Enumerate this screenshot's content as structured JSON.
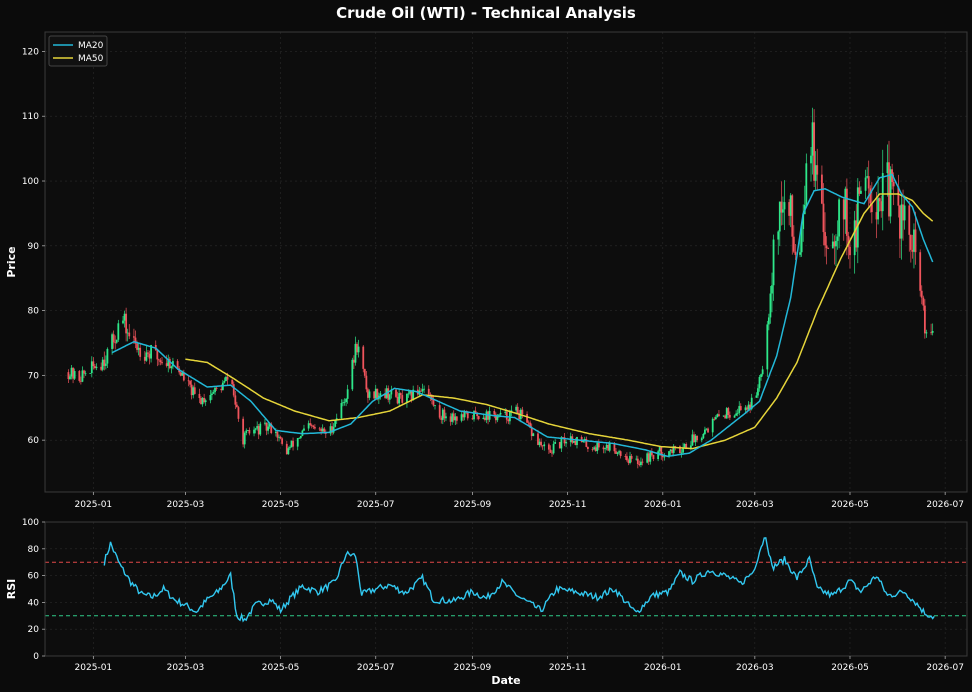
{
  "figure_title": "Crude Oil (WTI) - Technical Analysis",
  "colors": {
    "background": "#0b0b0b",
    "axes_face": "#0d0d0d",
    "grid": "#2a2a2a",
    "text": "#ffffff",
    "up_candle": "#2ee88a",
    "down_candle": "#f0545c",
    "ma20": "#22b8d8",
    "ma50": "#e6d53a",
    "rsi": "#32c8f0",
    "overbought": "#e04848",
    "oversold": "#2ecc8a"
  },
  "chart_data": [
    {
      "type": "candlestick",
      "title": "",
      "xlabel": "",
      "ylabel": "Price",
      "ylim": [
        52,
        123
      ],
      "yticks": [
        60,
        70,
        80,
        90,
        100,
        110,
        120
      ],
      "x_range": [
        "2024-12-01",
        "2026-07-15"
      ],
      "xtick_labels": [
        "2025-01",
        "2025-03",
        "2025-05",
        "2025-07",
        "2025-09",
        "2025-11",
        "2026-01",
        "2026-03",
        "2026-05",
        "2026-07"
      ],
      "xtick_dates": [
        "2025-01-01",
        "2025-03-01",
        "2025-05-01",
        "2025-07-01",
        "2025-09-01",
        "2025-11-01",
        "2026-01-01",
        "2026-03-01",
        "2026-05-01",
        "2026-07-01"
      ],
      "grid": true,
      "legend": {
        "position": "top-left",
        "entries": [
          "MA20",
          "MA50"
        ]
      },
      "close_keypoints": [
        [
          "2024-12-16",
          70.5
        ],
        [
          "2024-12-22",
          69.5
        ],
        [
          "2025-01-05",
          72.0
        ],
        [
          "2025-01-12",
          74.0
        ],
        [
          "2025-01-19",
          79.0
        ],
        [
          "2025-01-26",
          75.0
        ],
        [
          "2025-02-09",
          73.0
        ],
        [
          "2025-02-23",
          71.5
        ],
        [
          "2025-03-09",
          66.0
        ],
        [
          "2025-03-23",
          68.0
        ],
        [
          "2025-03-30",
          70.0
        ],
        [
          "2025-04-06",
          60.0
        ],
        [
          "2025-04-13",
          61.5
        ],
        [
          "2025-04-27",
          62.0
        ],
        [
          "2025-05-04",
          58.0
        ],
        [
          "2025-05-18",
          62.0
        ],
        [
          "2025-06-01",
          61.0
        ],
        [
          "2025-06-12",
          67.0
        ],
        [
          "2025-06-19",
          75.0
        ],
        [
          "2025-06-26",
          67.0
        ],
        [
          "2025-07-06",
          67.5
        ],
        [
          "2025-07-20",
          66.0
        ],
        [
          "2025-08-01",
          68.5
        ],
        [
          "2025-08-10",
          64.0
        ],
        [
          "2025-08-24",
          63.5
        ],
        [
          "2025-09-07",
          64.0
        ],
        [
          "2025-09-21",
          63.5
        ],
        [
          "2025-09-30",
          64.5
        ],
        [
          "2025-10-12",
          60.0
        ],
        [
          "2025-10-19",
          58.0
        ],
        [
          "2025-11-02",
          60.5
        ],
        [
          "2025-11-16",
          59.0
        ],
        [
          "2025-11-30",
          59.0
        ],
        [
          "2025-12-14",
          56.5
        ],
        [
          "2025-12-28",
          58.0
        ],
        [
          "2026-01-11",
          58.5
        ],
        [
          "2026-01-25",
          61.0
        ],
        [
          "2026-02-08",
          64.0
        ],
        [
          "2026-02-22",
          65.0
        ],
        [
          "2026-03-01",
          66.0
        ],
        [
          "2026-03-08",
          75.0
        ],
        [
          "2026-03-15",
          95.0
        ],
        [
          "2026-03-22",
          96.0
        ],
        [
          "2026-03-29",
          88.0
        ],
        [
          "2026-04-05",
          110.0
        ],
        [
          "2026-04-12",
          93.0
        ],
        [
          "2026-04-19",
          91.0
        ],
        [
          "2026-04-26",
          98.0
        ],
        [
          "2026-05-03",
          88.0
        ],
        [
          "2026-05-10",
          104.0
        ],
        [
          "2026-05-17",
          97.0
        ],
        [
          "2026-05-24",
          99.0
        ],
        [
          "2026-05-31",
          96.0
        ],
        [
          "2026-06-07",
          92.0
        ],
        [
          "2026-06-14",
          86.0
        ],
        [
          "2026-06-19",
          75.0
        ],
        [
          "2026-06-23",
          77.0
        ]
      ],
      "ma20_keypoints": [
        [
          "2025-01-13",
          73.5
        ],
        [
          "2025-01-27",
          75.2
        ],
        [
          "2025-02-10",
          74.2
        ],
        [
          "2025-02-24",
          71.0
        ],
        [
          "2025-03-15",
          68.2
        ],
        [
          "2025-03-30",
          68.5
        ],
        [
          "2025-04-12",
          66.0
        ],
        [
          "2025-04-28",
          61.5
        ],
        [
          "2025-05-15",
          61.0
        ],
        [
          "2025-06-01",
          61.2
        ],
        [
          "2025-06-15",
          62.5
        ],
        [
          "2025-06-29",
          66.0
        ],
        [
          "2025-07-13",
          68.0
        ],
        [
          "2025-07-27",
          67.5
        ],
        [
          "2025-08-10",
          66.0
        ],
        [
          "2025-08-24",
          64.5
        ],
        [
          "2025-09-14",
          63.8
        ],
        [
          "2025-09-28",
          63.5
        ],
        [
          "2025-10-19",
          60.5
        ],
        [
          "2025-11-09",
          60.0
        ],
        [
          "2025-11-30",
          59.5
        ],
        [
          "2025-12-21",
          58.5
        ],
        [
          "2026-01-04",
          57.5
        ],
        [
          "2026-01-18",
          58.0
        ],
        [
          "2026-02-01",
          60.0
        ],
        [
          "2026-02-22",
          64.0
        ],
        [
          "2026-03-04",
          66.0
        ],
        [
          "2026-03-15",
          73.0
        ],
        [
          "2026-03-24",
          82.0
        ],
        [
          "2026-04-01",
          95.0
        ],
        [
          "2026-04-08",
          98.5
        ],
        [
          "2026-04-15",
          98.8
        ],
        [
          "2026-04-26",
          97.5
        ],
        [
          "2026-05-10",
          96.5
        ],
        [
          "2026-05-20",
          100.5
        ],
        [
          "2026-05-28",
          101.0
        ],
        [
          "2026-06-03",
          98.0
        ],
        [
          "2026-06-10",
          96.0
        ],
        [
          "2026-06-17",
          91.0
        ],
        [
          "2026-06-23",
          87.5
        ]
      ],
      "ma50_keypoints": [
        [
          "2025-03-01",
          72.5
        ],
        [
          "2025-03-15",
          72.0
        ],
        [
          "2025-04-01",
          69.5
        ],
        [
          "2025-04-20",
          66.5
        ],
        [
          "2025-05-10",
          64.5
        ],
        [
          "2025-06-01",
          63.0
        ],
        [
          "2025-06-20",
          63.5
        ],
        [
          "2025-07-10",
          64.5
        ],
        [
          "2025-07-31",
          67.0
        ],
        [
          "2025-08-20",
          66.5
        ],
        [
          "2025-09-10",
          65.5
        ],
        [
          "2025-10-01",
          64.0
        ],
        [
          "2025-10-20",
          62.5
        ],
        [
          "2025-11-15",
          61.0
        ],
        [
          "2025-12-10",
          60.0
        ],
        [
          "2025-12-31",
          59.0
        ],
        [
          "2026-01-20",
          58.7
        ],
        [
          "2026-02-10",
          60.0
        ],
        [
          "2026-03-01",
          62.0
        ],
        [
          "2026-03-15",
          66.5
        ],
        [
          "2026-03-28",
          72.0
        ],
        [
          "2026-04-10",
          80.0
        ],
        [
          "2026-04-25",
          88.0
        ],
        [
          "2026-05-10",
          95.0
        ],
        [
          "2026-05-20",
          98.0
        ],
        [
          "2026-06-01",
          98.0
        ],
        [
          "2026-06-10",
          97.0
        ],
        [
          "2026-06-17",
          95.0
        ],
        [
          "2026-06-23",
          93.8
        ]
      ]
    },
    {
      "type": "line",
      "title": "",
      "xlabel": "Date",
      "ylabel": "RSI",
      "ylim": [
        0,
        100
      ],
      "yticks": [
        0,
        20,
        40,
        60,
        80,
        100
      ],
      "x_range": [
        "2024-12-01",
        "2026-07-15"
      ],
      "xtick_labels": [
        "2025-01",
        "2025-03",
        "2025-05",
        "2025-07",
        "2025-09",
        "2025-11",
        "2026-01",
        "2026-03",
        "2026-05",
        "2026-07"
      ],
      "xtick_dates": [
        "2025-01-01",
        "2025-03-01",
        "2025-05-01",
        "2025-07-01",
        "2025-09-01",
        "2025-11-01",
        "2026-01-01",
        "2026-03-01",
        "2026-05-01",
        "2026-07-01"
      ],
      "grid": true,
      "overbought": 70,
      "oversold": 30,
      "rsi_keypoints": [
        [
          "2025-01-08",
          70
        ],
        [
          "2025-01-12",
          84
        ],
        [
          "2025-01-18",
          68
        ],
        [
          "2025-01-25",
          55
        ],
        [
          "2025-02-01",
          46
        ],
        [
          "2025-02-08",
          44
        ],
        [
          "2025-02-15",
          50
        ],
        [
          "2025-02-22",
          42
        ],
        [
          "2025-03-01",
          38
        ],
        [
          "2025-03-08",
          33
        ],
        [
          "2025-03-15",
          42
        ],
        [
          "2025-03-22",
          48
        ],
        [
          "2025-03-30",
          60
        ],
        [
          "2025-04-03",
          30
        ],
        [
          "2025-04-08",
          27
        ],
        [
          "2025-04-15",
          38
        ],
        [
          "2025-04-25",
          42
        ],
        [
          "2025-05-01",
          34
        ],
        [
          "2025-05-08",
          44
        ],
        [
          "2025-05-15",
          52
        ],
        [
          "2025-05-25",
          48
        ],
        [
          "2025-06-05",
          55
        ],
        [
          "2025-06-12",
          76
        ],
        [
          "2025-06-18",
          75
        ],
        [
          "2025-06-22",
          46
        ],
        [
          "2025-07-01",
          50
        ],
        [
          "2025-07-10",
          53
        ],
        [
          "2025-07-20",
          47
        ],
        [
          "2025-07-31",
          58
        ],
        [
          "2025-08-07",
          42
        ],
        [
          "2025-08-20",
          41
        ],
        [
          "2025-09-01",
          48
        ],
        [
          "2025-09-10",
          43
        ],
        [
          "2025-09-20",
          55
        ],
        [
          "2025-10-01",
          44
        ],
        [
          "2025-10-15",
          34
        ],
        [
          "2025-10-25",
          50
        ],
        [
          "2025-11-05",
          48
        ],
        [
          "2025-11-20",
          44
        ],
        [
          "2025-12-01",
          50
        ],
        [
          "2025-12-10",
          38
        ],
        [
          "2025-12-15",
          32
        ],
        [
          "2025-12-25",
          45
        ],
        [
          "2026-01-05",
          48
        ],
        [
          "2026-01-12",
          62
        ],
        [
          "2026-01-20",
          56
        ],
        [
          "2026-01-31",
          64
        ],
        [
          "2026-02-10",
          60
        ],
        [
          "2026-02-20",
          54
        ],
        [
          "2026-02-28",
          63
        ],
        [
          "2026-03-05",
          82
        ],
        [
          "2026-03-08",
          90
        ],
        [
          "2026-03-12",
          66
        ],
        [
          "2026-03-20",
          72
        ],
        [
          "2026-03-28",
          58
        ],
        [
          "2026-04-05",
          72
        ],
        [
          "2026-04-10",
          50
        ],
        [
          "2026-04-20",
          45
        ],
        [
          "2026-05-01",
          56
        ],
        [
          "2026-05-08",
          48
        ],
        [
          "2026-05-18",
          60
        ],
        [
          "2026-05-25",
          45
        ],
        [
          "2026-06-05",
          48
        ],
        [
          "2026-06-12",
          40
        ],
        [
          "2026-06-18",
          32
        ],
        [
          "2026-06-24",
          29
        ]
      ]
    }
  ]
}
